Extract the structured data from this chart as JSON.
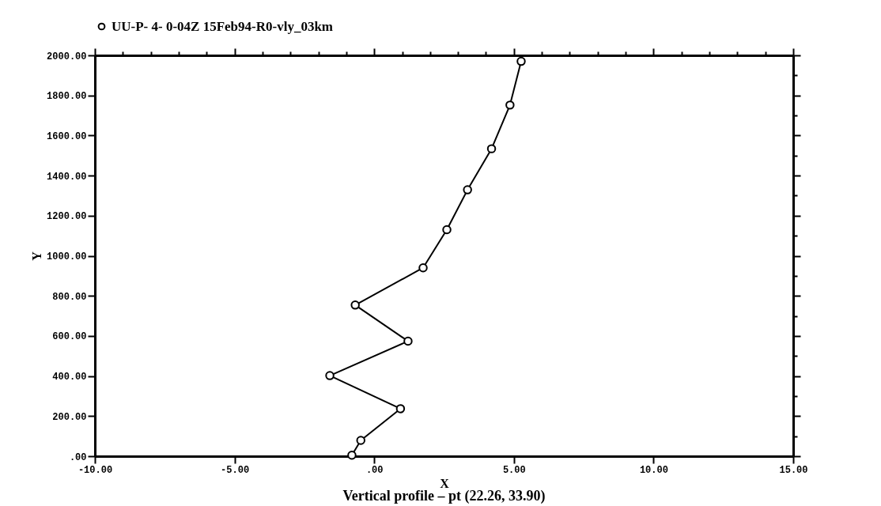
{
  "chart_data": {
    "type": "line",
    "xlabel": "X",
    "ylabel": "Y",
    "annotations": [
      "Vertical profile – pt (22.26, 33.90)"
    ],
    "legend": "top",
    "marker": "circle",
    "line_style": "solid",
    "grid": false,
    "series": [
      {
        "name": "UU-P- 4- 0-04Z 15Feb94-R0-vly_03km",
        "color": "#000000",
        "x": [
          -0.8,
          -0.48,
          0.94,
          -1.59,
          1.21,
          -0.68,
          1.75,
          2.6,
          3.34,
          4.2,
          4.86,
          5.26
        ],
        "values": [
          5,
          79,
          237,
          402,
          574,
          754,
          940,
          1130,
          1329,
          1534,
          1752,
          1970
        ]
      }
    ],
    "xlim": [
      -10,
      15
    ],
    "ylim": [
      0,
      2000
    ],
    "xticks": [
      {
        "value": -10,
        "label": "-10.00"
      },
      {
        "value": -9,
        "label": null
      },
      {
        "value": -8,
        "label": null
      },
      {
        "value": -7,
        "label": null
      },
      {
        "value": -6,
        "label": null
      },
      {
        "value": -5,
        "label": "-5.00"
      },
      {
        "value": -4,
        "label": null
      },
      {
        "value": -3,
        "label": null
      },
      {
        "value": -2,
        "label": null
      },
      {
        "value": -1,
        "label": null
      },
      {
        "value": 0,
        "label": ".00"
      },
      {
        "value": 1,
        "label": null
      },
      {
        "value": 2,
        "label": null
      },
      {
        "value": 3,
        "label": null
      },
      {
        "value": 4,
        "label": null
      },
      {
        "value": 5,
        "label": "5.00"
      },
      {
        "value": 6,
        "label": null
      },
      {
        "value": 7,
        "label": null
      },
      {
        "value": 8,
        "label": null
      },
      {
        "value": 9,
        "label": null
      },
      {
        "value": 10,
        "label": "10.00"
      },
      {
        "value": 11,
        "label": null
      },
      {
        "value": 12,
        "label": null
      },
      {
        "value": 13,
        "label": null
      },
      {
        "value": 14,
        "label": null
      },
      {
        "value": 15,
        "label": "15.00"
      }
    ],
    "yticks": [
      {
        "value": 0,
        "label": ".00"
      },
      {
        "value": 100,
        "label": null
      },
      {
        "value": 200,
        "label": "200.00"
      },
      {
        "value": 300,
        "label": null
      },
      {
        "value": 400,
        "label": "400.00"
      },
      {
        "value": 500,
        "label": null
      },
      {
        "value": 600,
        "label": "600.00"
      },
      {
        "value": 700,
        "label": null
      },
      {
        "value": 800,
        "label": "800.00"
      },
      {
        "value": 900,
        "label": null
      },
      {
        "value": 1000,
        "label": "1000.00"
      },
      {
        "value": 1100,
        "label": null
      },
      {
        "value": 1200,
        "label": "1200.00"
      },
      {
        "value": 1300,
        "label": null
      },
      {
        "value": 1400,
        "label": "1400.00"
      },
      {
        "value": 1500,
        "label": null
      },
      {
        "value": 1600,
        "label": "1600.00"
      },
      {
        "value": 1700,
        "label": null
      },
      {
        "value": 1800,
        "label": "1800.00"
      },
      {
        "value": 1900,
        "label": null
      },
      {
        "value": 2000,
        "label": "2000.00"
      }
    ]
  }
}
